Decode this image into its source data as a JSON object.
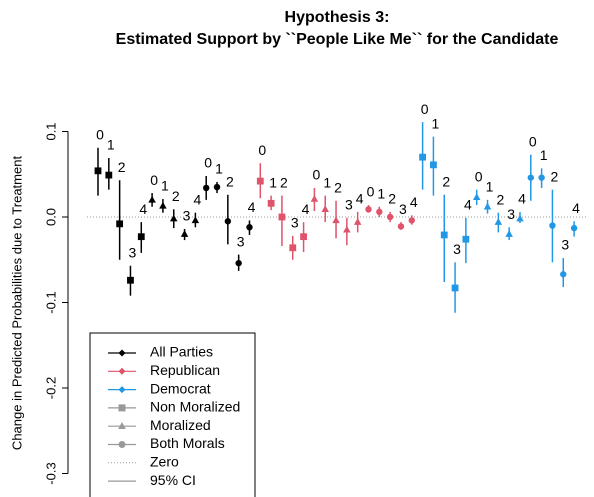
{
  "chart_data": {
    "type": "errorbar",
    "title": "Hypothesis 3:",
    "subtitle": "Estimated Support by ``People Like Me`` for the Candidate",
    "y_label": "Change in Predicted Probabilities due to Treatment",
    "ylim": [
      -0.3,
      0.1
    ],
    "yticks": [
      0.1,
      {
        "value": 0,
        "label": "0.0"
      },
      -0.1,
      -0.2,
      -0.3
    ],
    "point_labels": [
      "0",
      "1",
      "2",
      "3",
      "4"
    ],
    "markers": [
      {
        "name": "Non Moralized",
        "shape": "square"
      },
      {
        "name": "Moralized",
        "shape": "triangle"
      },
      {
        "name": "Both Morals",
        "shape": "circle"
      }
    ],
    "reference_line": {
      "name": "Zero",
      "value": 0
    },
    "ci_name": "95% CI",
    "series": [
      {
        "name": "All Parties",
        "color": "#000000",
        "subgroups": [
          {
            "values": [
              0.054,
              0.049,
              -0.008,
              -0.074,
              -0.023
            ],
            "lower": [
              0.025,
              0.032,
              -0.05,
              -0.092,
              -0.042
            ],
            "upper": [
              0.081,
              0.069,
              0.043,
              -0.057,
              -0.006
            ]
          },
          {
            "values": [
              0.02,
              0.013,
              -0.002,
              -0.02,
              -0.004
            ],
            "lower": [
              0.012,
              0.005,
              -0.013,
              -0.027,
              -0.012
            ],
            "upper": [
              0.028,
              0.021,
              0.009,
              -0.014,
              0.005
            ]
          },
          {
            "values": [
              0.034,
              0.035,
              -0.005,
              -0.054,
              -0.012
            ],
            "lower": [
              0.02,
              0.028,
              -0.032,
              -0.063,
              -0.021
            ],
            "upper": [
              0.048,
              0.041,
              0.026,
              -0.044,
              -0.004
            ]
          }
        ]
      },
      {
        "name": "Republican",
        "color": "#df536b",
        "subgroups": [
          {
            "values": [
              0.042,
              0.016,
              0.0,
              -0.036,
              -0.023
            ],
            "lower": [
              0.022,
              0.008,
              -0.034,
              -0.05,
              -0.041
            ],
            "upper": [
              0.063,
              0.025,
              0.025,
              -0.022,
              -0.006
            ]
          },
          {
            "values": [
              0.021,
              0.009,
              -0.004,
              -0.015,
              -0.006
            ],
            "lower": [
              0.007,
              -0.006,
              -0.025,
              -0.033,
              -0.018
            ],
            "upper": [
              0.034,
              0.025,
              0.019,
              -0.001,
              0.006
            ]
          },
          {
            "values": [
              0.009,
              0.006,
              0.0,
              -0.011,
              -0.004
            ],
            "lower": [
              0.005,
              0.0,
              -0.006,
              -0.015,
              -0.009
            ],
            "upper": [
              0.014,
              0.012,
              0.006,
              -0.006,
              0.002
            ]
          }
        ]
      },
      {
        "name": "Democrat",
        "color": "#2297e6",
        "subgroups": [
          {
            "values": [
              0.07,
              0.061,
              -0.021,
              -0.083,
              -0.026
            ],
            "lower": [
              0.032,
              0.025,
              -0.076,
              -0.112,
              -0.054
            ],
            "upper": [
              0.111,
              0.094,
              0.026,
              -0.053,
              -0.001
            ]
          },
          {
            "values": [
              0.023,
              0.012,
              -0.006,
              -0.02,
              -0.002
            ],
            "lower": [
              0.014,
              0.004,
              -0.018,
              -0.027,
              -0.007
            ],
            "upper": [
              0.032,
              0.02,
              0.005,
              -0.012,
              0.006
            ]
          },
          {
            "values": [
              0.046,
              0.046,
              -0.01,
              -0.067,
              -0.013
            ],
            "lower": [
              0.019,
              0.034,
              -0.053,
              -0.082,
              -0.023
            ],
            "upper": [
              0.073,
              0.057,
              0.032,
              -0.048,
              -0.005
            ]
          }
        ]
      }
    ]
  }
}
